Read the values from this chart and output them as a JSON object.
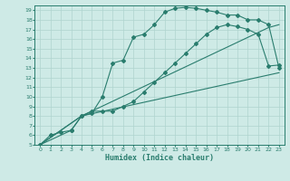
{
  "xlabel": "Humidex (Indice chaleur)",
  "bg_color": "#ceeae6",
  "grid_color": "#afd4cf",
  "line_color": "#2a7d6e",
  "xlim": [
    -0.5,
    23.5
  ],
  "ylim": [
    5,
    19.5
  ],
  "xticks": [
    0,
    1,
    2,
    3,
    4,
    5,
    6,
    7,
    8,
    9,
    10,
    11,
    12,
    13,
    14,
    15,
    16,
    17,
    18,
    19,
    20,
    21,
    22,
    23
  ],
  "yticks": [
    5,
    6,
    7,
    8,
    9,
    10,
    11,
    12,
    13,
    14,
    15,
    16,
    17,
    18,
    19
  ],
  "curve1_x": [
    0,
    1,
    2,
    3,
    4,
    5,
    6,
    7,
    8,
    9,
    10,
    11,
    12,
    13,
    14,
    15,
    16,
    17,
    18,
    19,
    20,
    21,
    22,
    23
  ],
  "curve1_y": [
    5.0,
    6.0,
    6.3,
    6.5,
    8.0,
    8.3,
    10.0,
    13.5,
    13.8,
    16.2,
    16.5,
    17.5,
    18.8,
    19.2,
    19.3,
    19.2,
    19.0,
    18.8,
    18.5,
    18.5,
    18.0,
    18.0,
    17.5,
    13.0
  ],
  "curve2_x": [
    0,
    3,
    4,
    5,
    6,
    7,
    8,
    9,
    10,
    11,
    12,
    13,
    14,
    15,
    16,
    17,
    18,
    19,
    20,
    21,
    22,
    23
  ],
  "curve2_y": [
    5.0,
    6.5,
    8.0,
    8.5,
    8.5,
    8.5,
    9.0,
    9.5,
    10.5,
    11.5,
    12.5,
    13.5,
    14.5,
    15.5,
    16.5,
    17.2,
    17.5,
    17.3,
    17.0,
    16.5,
    13.2,
    13.3
  ],
  "curve3_x": [
    0,
    4,
    23
  ],
  "curve3_y": [
    5.0,
    8.0,
    12.5
  ],
  "curve4_x": [
    0,
    4,
    22,
    23
  ],
  "curve4_y": [
    5.0,
    8.0,
    17.2,
    17.5
  ]
}
